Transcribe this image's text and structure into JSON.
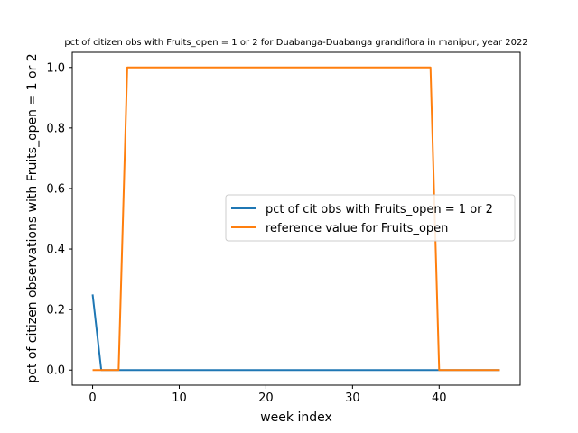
{
  "chart_data": {
    "type": "line",
    "title": "pct of citizen obs with Fruits_open = 1 or 2 for Duabanga-Duabanga grandiflora in manipur, year 2022",
    "xlabel": "week index",
    "ylabel": "pct of citizen observations with Fruits_open = 1 or 2",
    "xlim": [
      -2.35,
      49.35
    ],
    "ylim": [
      -0.05,
      1.05
    ],
    "x_ticks": [
      0,
      10,
      20,
      30,
      40
    ],
    "y_ticks": [
      0.0,
      0.2,
      0.4,
      0.6,
      0.8,
      1.0
    ],
    "x_tick_labels": [
      "0",
      "10",
      "20",
      "30",
      "40"
    ],
    "y_tick_labels": [
      "0.0",
      "0.2",
      "0.4",
      "0.6",
      "0.8",
      "1.0"
    ],
    "grid": false,
    "legend_position": "center-right",
    "series": [
      {
        "name": "pct of cit obs with Fruits_open = 1 or 2",
        "color": "#1f77b4",
        "points": [
          [
            0,
            0.25
          ],
          [
            1,
            0.0
          ],
          [
            47,
            0.0
          ]
        ]
      },
      {
        "name": "reference value for Fruits_open",
        "color": "#ff7f0e",
        "points": [
          [
            0,
            0.0
          ],
          [
            3,
            0.0
          ],
          [
            4,
            1.0
          ],
          [
            39,
            1.0
          ],
          [
            40,
            0.0
          ],
          [
            47,
            0.0
          ]
        ]
      }
    ]
  }
}
